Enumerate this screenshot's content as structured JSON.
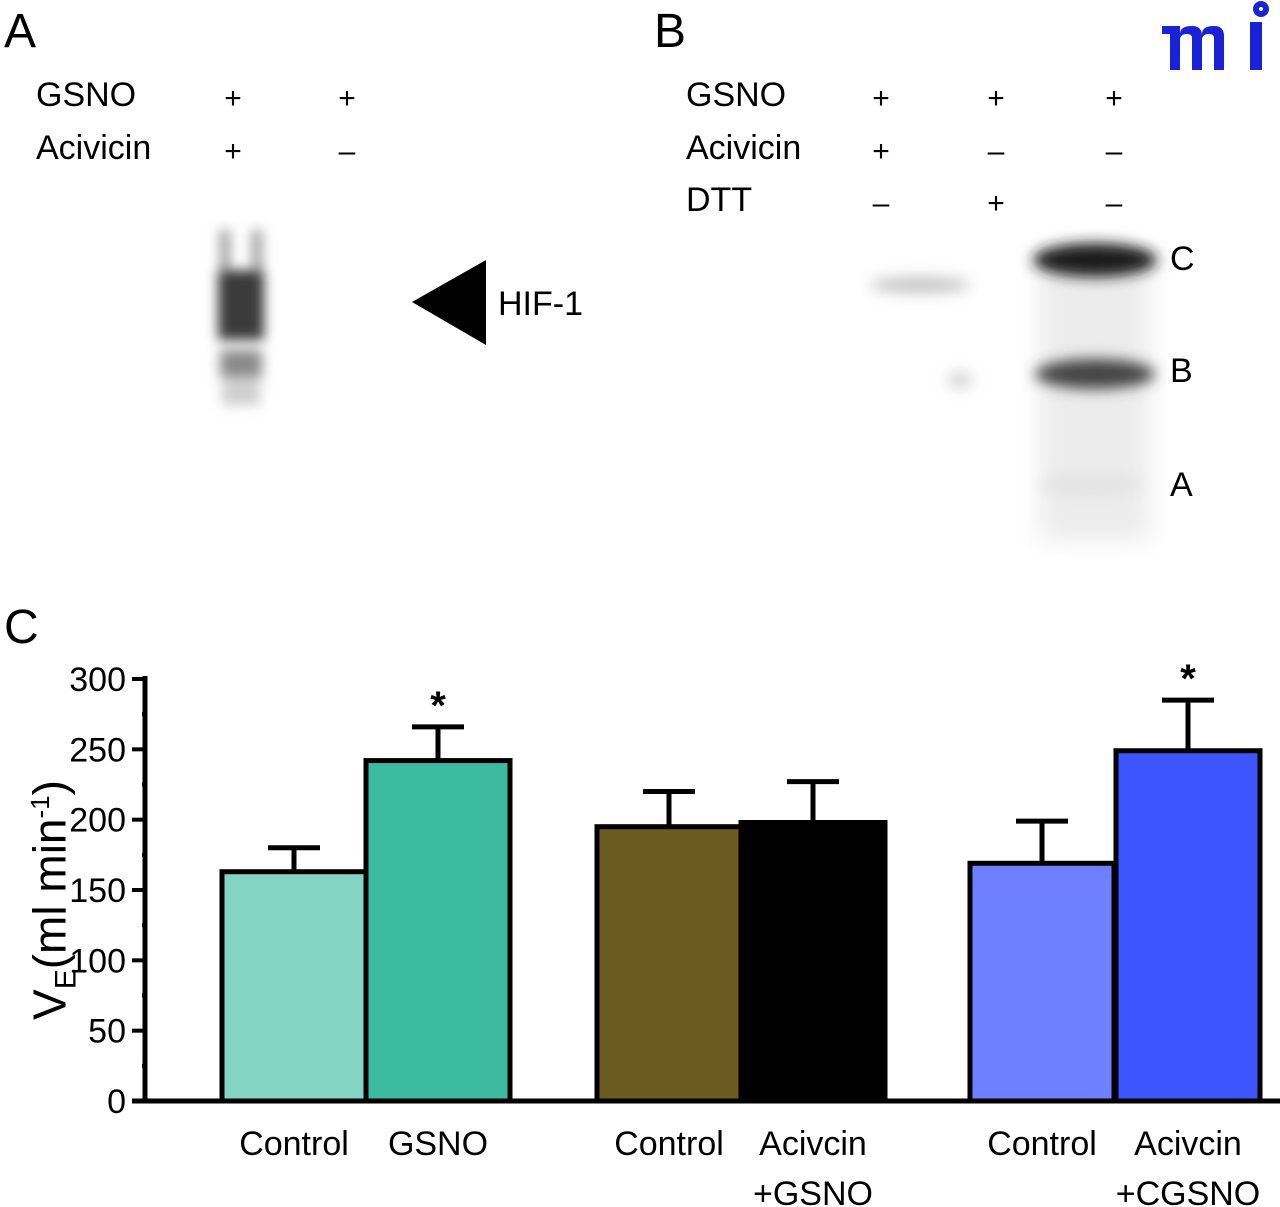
{
  "logo": {
    "text": "mi",
    "color": "#1a22d6"
  },
  "panel_a": {
    "letter": "A",
    "rows": [
      {
        "label": "GSNO",
        "signs": [
          "+",
          "+"
        ]
      },
      {
        "label": "Acivicin",
        "signs": [
          "+",
          "–"
        ]
      }
    ],
    "arrow_label": "HIF-1"
  },
  "panel_b": {
    "letter": "B",
    "rows": [
      {
        "label": "GSNO",
        "signs": [
          "+",
          "+",
          "+"
        ]
      },
      {
        "label": "Acivicin",
        "signs": [
          "+",
          "–",
          "–"
        ]
      },
      {
        "label": "DTT",
        "signs": [
          "–",
          "+",
          "–"
        ]
      }
    ],
    "band_labels": [
      "C",
      "B",
      "A"
    ]
  },
  "panel_c": {
    "letter": "C",
    "ylabel_main": "V",
    "ylabel_sub": "E",
    "ylabel_rest": "(ml min",
    "ylabel_sup": "-1",
    "ylabel_close": ")"
  },
  "chart_data": {
    "type": "bar",
    "title": "",
    "xlabel": "",
    "ylabel": "VE (ml min-1)",
    "ylim": [
      0,
      300
    ],
    "yticks": [
      0,
      50,
      100,
      150,
      200,
      250,
      300
    ],
    "grid": false,
    "legend": "none",
    "groups": [
      {
        "bars": [
          {
            "label": [
              "Control"
            ],
            "value": 163,
            "error": 17,
            "color": "#84d4c4",
            "significant": false
          },
          {
            "label": [
              "GSNO"
            ],
            "value": 242,
            "error": 24,
            "color": "#3dbba1",
            "significant": true
          }
        ]
      },
      {
        "bars": [
          {
            "label": [
              "Control"
            ],
            "value": 195,
            "error": 25,
            "color": "#6b5b20",
            "significant": false
          },
          {
            "label": [
              "Acivcin",
              "+GSNO"
            ],
            "value": 198,
            "error": 29,
            "color": "#000000",
            "significant": false
          }
        ]
      },
      {
        "bars": [
          {
            "label": [
              "Control"
            ],
            "value": 169,
            "error": 30,
            "color": "#6e80ff",
            "significant": false
          },
          {
            "label": [
              "Acivcin",
              "+CGSNO"
            ],
            "value": 249,
            "error": 36,
            "color": "#3d55ff",
            "significant": true
          }
        ]
      }
    ],
    "significance_marker": "*"
  }
}
